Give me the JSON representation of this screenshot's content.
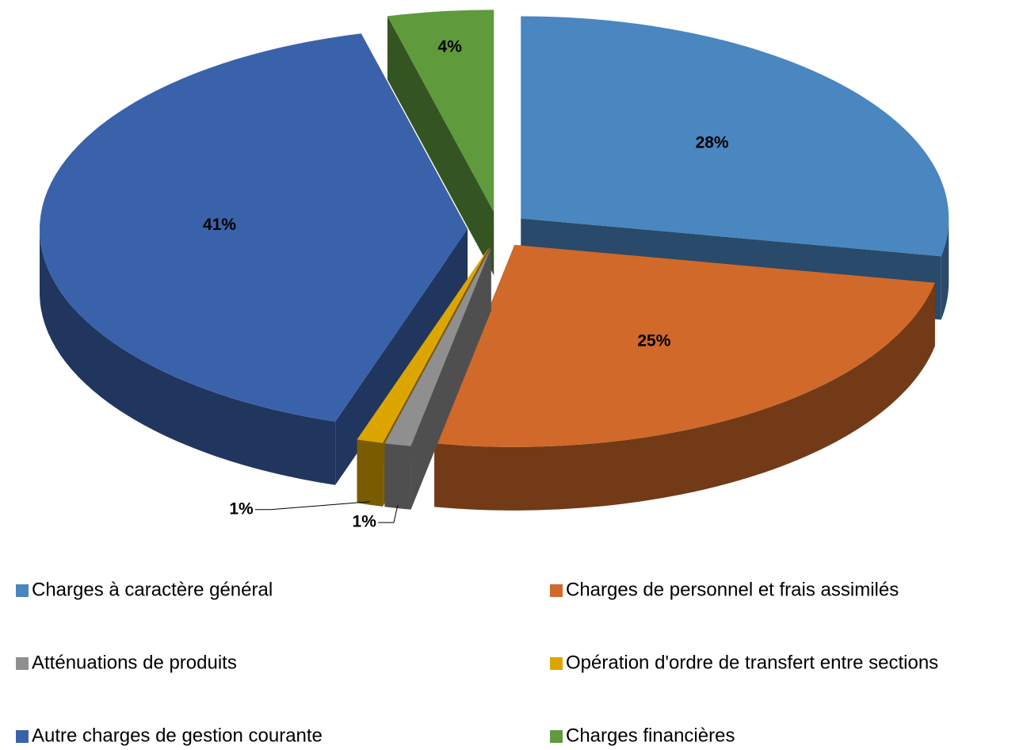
{
  "chart_data": {
    "type": "pie3d",
    "categories": [
      "Charges à caractère général",
      "Charges de personnel et frais assimilés",
      "Atténuations de produits",
      "Opération d'ordre de transfert entre sections",
      "Autre charges de gestion courante",
      "Charges financières"
    ],
    "values": [
      28,
      25,
      1,
      1,
      41,
      4
    ],
    "value_labels": [
      "28%",
      "25%",
      "1%",
      "1%",
      "41%",
      "4%"
    ],
    "colors": [
      "#4a86c0",
      "#d0692a",
      "#8f8f8f",
      "#dca500",
      "#3a62aa",
      "#5f9a3c"
    ],
    "legend": "bottom"
  }
}
